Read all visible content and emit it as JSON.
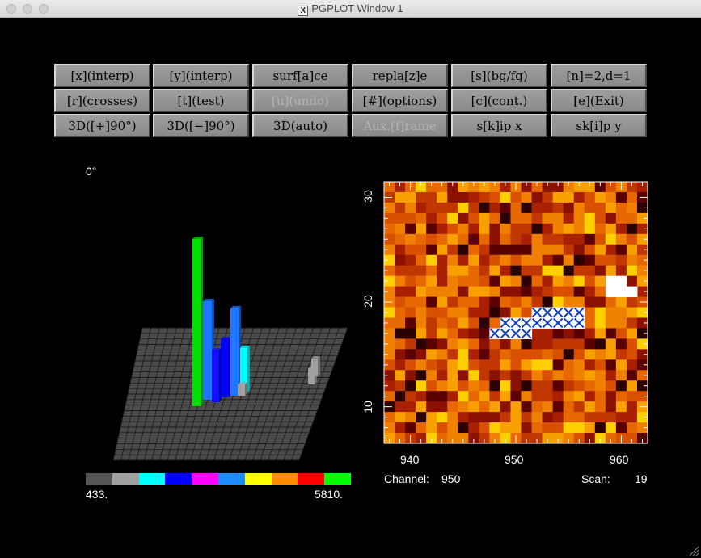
{
  "window": {
    "title": "PGPLOT Window 1",
    "x_icon": "X"
  },
  "toolbar": {
    "rows": [
      [
        {
          "label": "[x](interp)",
          "enabled": true
        },
        {
          "label": "[y](interp)",
          "enabled": true
        },
        {
          "label": "surf[a]ce",
          "enabled": true
        },
        {
          "label": "repla[z]e",
          "enabled": true
        },
        {
          "label": "[s](bg/fg)",
          "enabled": true
        },
        {
          "label": "[n]=2,d=1",
          "enabled": true
        }
      ],
      [
        {
          "label": "[r](crosses)",
          "enabled": true
        },
        {
          "label": "[t](test)",
          "enabled": true
        },
        {
          "label": "[u](undo)",
          "enabled": false
        },
        {
          "label": "[#](options)",
          "enabled": true
        },
        {
          "label": "[c](cont.)",
          "enabled": true
        },
        {
          "label": "[e](Exit)",
          "enabled": true
        }
      ],
      [
        {
          "label": "3D([+]90°)",
          "enabled": true
        },
        {
          "label": "3D([−]90°)",
          "enabled": true
        },
        {
          "label": "3D(auto)",
          "enabled": true
        },
        {
          "label": "Aux.[f]rame",
          "enabled": false
        },
        {
          "label": "s[k]ip x",
          "enabled": true
        },
        {
          "label": "sk[i]p y",
          "enabled": true
        }
      ]
    ]
  },
  "surface_plot": {
    "angle_label": "0°",
    "colorbar": {
      "min_label": "433.",
      "max_label": "5810.",
      "colors": [
        "#555555",
        "#a0a0a0",
        "#00ffff",
        "#0000ff",
        "#ff00ff",
        "#1e8cff",
        "#ffff00",
        "#ff8c00",
        "#ff0000",
        "#00ff00"
      ]
    }
  },
  "image_plot": {
    "x_ticks": [
      "940",
      "950",
      "960"
    ],
    "y_ticks": [
      "10",
      "20",
      "30"
    ],
    "channel_label": "Channel:",
    "channel_value": "950",
    "scan_label": "Scan:",
    "scan_value": "19",
    "x_range": [
      937.5,
      962.5
    ],
    "y_range": [
      6.5,
      31.5
    ]
  }
}
